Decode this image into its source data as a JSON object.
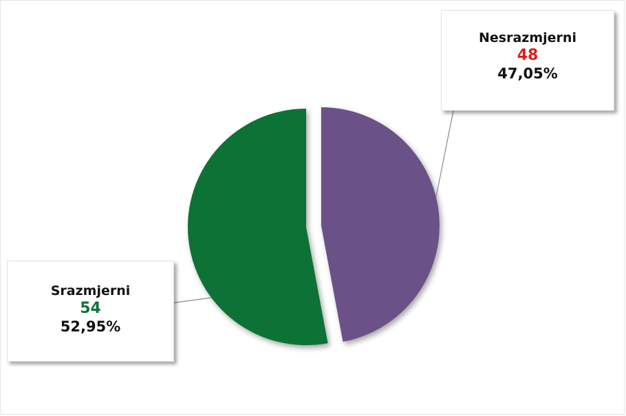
{
  "chart_data": {
    "type": "pie",
    "slices": [
      {
        "label": "Nesrazmjerni",
        "value": 48,
        "percent_label": "47,05%",
        "color": "#6a5187",
        "count_color": "#e11b1b",
        "exploded": true
      },
      {
        "label": "Srazmjerni",
        "value": 54,
        "percent_label": "52,95%",
        "color": "#117236",
        "count_color": "#117236",
        "exploded": false
      }
    ]
  }
}
